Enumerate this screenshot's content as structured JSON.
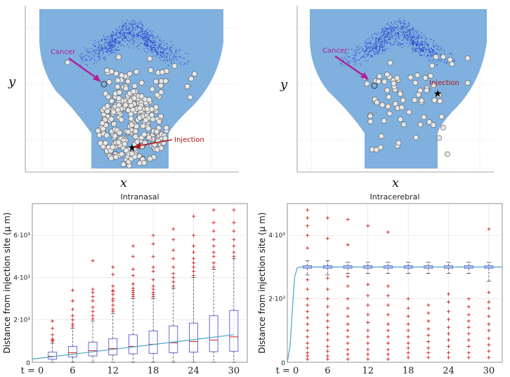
{
  "maps": {
    "x_label": "x",
    "y_label": "y",
    "cancer_label": "Cancer",
    "injection_label": "Injection",
    "cancer_color": "#b2209a",
    "injection_color": "#b01818",
    "brain_color": "#7fb0de",
    "particle_color": "#e6e6e6"
  },
  "chart_data": [
    {
      "type": "box",
      "title": "Intranasal",
      "ylabel": "Distance from injection site (μ m)",
      "xlabel_prefix": "t = 0",
      "x_ticks": [
        6,
        12,
        18,
        24,
        30
      ],
      "xlim": [
        0,
        32
      ],
      "ylim": [
        0,
        7500
      ],
      "y_ticks": [
        {
          "value": 2000,
          "label": "2·10³"
        },
        {
          "value": 4000,
          "label": "4·10³"
        },
        {
          "value": 6000,
          "label": "6·10³"
        }
      ],
      "boxes": [
        {
          "t": 3,
          "whislo": 0,
          "q1": 150,
          "med": 280,
          "q3": 480,
          "whishi": 900,
          "outliers": [
            1000,
            1050,
            1100,
            1300,
            1600,
            1950
          ]
        },
        {
          "t": 6,
          "whislo": 0,
          "q1": 250,
          "med": 450,
          "q3": 750,
          "whishi": 1600,
          "outliers": [
            1700,
            1800,
            2000,
            2200,
            2500,
            2900,
            3400
          ]
        },
        {
          "t": 9,
          "whislo": 0,
          "q1": 300,
          "med": 550,
          "q3": 950,
          "whishi": 1950,
          "outliers": [
            2050,
            2200,
            2400,
            2600,
            2900,
            3100,
            3300,
            3450,
            4800
          ]
        },
        {
          "t": 12,
          "whislo": 0,
          "q1": 350,
          "med": 650,
          "q3": 1120,
          "whishi": 2300,
          "outliers": [
            2400,
            2500,
            2700,
            2900,
            3000,
            3200,
            3350,
            3400,
            3600,
            4150,
            4500
          ]
        },
        {
          "t": 15,
          "whislo": 0,
          "q1": 400,
          "med": 750,
          "q3": 1300,
          "whishi": 3000,
          "outliers": [
            3100,
            3200,
            3300,
            3400,
            3500,
            3700,
            4100,
            4400,
            5000,
            5500
          ]
        },
        {
          "t": 18,
          "whislo": 0,
          "q1": 420,
          "med": 850,
          "q3": 1480,
          "whishi": 3000,
          "outliers": [
            3100,
            3200,
            3300,
            3450,
            3600,
            3900,
            4300,
            4500,
            5000,
            5600,
            6000
          ]
        },
        {
          "t": 21,
          "whislo": 0,
          "q1": 450,
          "med": 920,
          "q3": 1720,
          "whishi": 3500,
          "outliers": [
            3600,
            3800,
            4000,
            4200,
            4500,
            4900,
            5300,
            5800,
            6300
          ]
        },
        {
          "t": 24,
          "whislo": 0,
          "q1": 480,
          "med": 980,
          "q3": 1850,
          "whishi": 4000,
          "outliers": [
            4100,
            4300,
            4500,
            4700,
            4900,
            5200,
            5500,
            6000,
            6900
          ]
        },
        {
          "t": 27,
          "whislo": 0,
          "q1": 500,
          "med": 1050,
          "q3": 2200,
          "whishi": 4400,
          "outliers": [
            4500,
            4700,
            5000,
            5200,
            5500,
            5800,
            6200,
            6600,
            7200
          ]
        },
        {
          "t": 30,
          "whislo": 0,
          "q1": 520,
          "med": 1200,
          "q3": 2450,
          "whishi": 4900,
          "outliers": [
            5000,
            5200,
            5500,
            5800,
            6200,
            6600,
            7200
          ]
        }
      ],
      "trend_line": [
        [
          0,
          150
        ],
        [
          30,
          1300
        ]
      ]
    },
    {
      "type": "box",
      "title": "Intracerebral",
      "ylabel": "Distance from injection site (μ m)",
      "xlabel_prefix": "t = 0",
      "x_ticks": [
        6,
        12,
        18,
        24,
        30
      ],
      "xlim": [
        0,
        32
      ],
      "ylim": [
        0,
        5000
      ],
      "y_ticks": [
        {
          "value": 2000,
          "label": "2·10³"
        },
        {
          "value": 4000,
          "label": "4·10³"
        }
      ],
      "boxes": [
        {
          "t": 3,
          "whislo": 2750,
          "q1": 2960,
          "med": 3000,
          "q3": 3040,
          "whishi": 3200,
          "outliers": [
            100,
            200,
            300,
            450,
            600,
            800,
            1000,
            1200,
            1400,
            1600,
            1800,
            2000,
            2300,
            2600,
            3600,
            4000,
            4300,
            4550,
            4800
          ]
        },
        {
          "t": 6,
          "whislo": 2750,
          "q1": 2960,
          "med": 3000,
          "q3": 3040,
          "whishi": 3200,
          "outliers": [
            100,
            200,
            350,
            500,
            700,
            900,
            1100,
            1300,
            1500,
            1750,
            2000,
            2300,
            2650,
            3900,
            4550
          ]
        },
        {
          "t": 9,
          "whislo": 2800,
          "q1": 2960,
          "med": 3000,
          "q3": 3040,
          "whishi": 3150,
          "outliers": [
            100,
            250,
            400,
            600,
            800,
            1000,
            1200,
            1450,
            1700,
            2000,
            2400,
            2700,
            3700,
            4500
          ]
        },
        {
          "t": 12,
          "whislo": 2800,
          "q1": 2960,
          "med": 3000,
          "q3": 3040,
          "whishi": 3150,
          "outliers": [
            100,
            250,
            400,
            600,
            800,
            1000,
            1250,
            1500,
            1800,
            2100,
            2450,
            4300
          ]
        },
        {
          "t": 15,
          "whislo": 2800,
          "q1": 2960,
          "med": 3000,
          "q3": 3040,
          "whishi": 3150,
          "outliers": [
            100,
            250,
            400,
            600,
            800,
            1000,
            1200,
            1500,
            1800,
            2100,
            2400,
            4100
          ]
        },
        {
          "t": 18,
          "whislo": 2800,
          "q1": 2960,
          "med": 3000,
          "q3": 3040,
          "whishi": 3150,
          "outliers": [
            150,
            300,
            450,
            600,
            800,
            1000,
            1200,
            1450,
            1700,
            2000
          ]
        },
        {
          "t": 21,
          "whislo": 2800,
          "q1": 2960,
          "med": 3000,
          "q3": 3040,
          "whishi": 3150,
          "outliers": [
            150,
            300,
            450,
            650,
            850,
            1050,
            1300,
            1550,
            1800
          ]
        },
        {
          "t": 24,
          "whislo": 2800,
          "q1": 2960,
          "med": 3000,
          "q3": 3040,
          "whishi": 3150,
          "outliers": [
            150,
            300,
            500,
            700,
            900,
            1100,
            1350,
            1600,
            1900,
            2150
          ]
        },
        {
          "t": 27,
          "whislo": 2800,
          "q1": 2960,
          "med": 3000,
          "q3": 3040,
          "whishi": 3150,
          "outliers": [
            150,
            300,
            500,
            700,
            900,
            1100,
            1300,
            1500,
            1750,
            2000
          ]
        },
        {
          "t": 30,
          "whislo": 2550,
          "q1": 2960,
          "med": 3000,
          "q3": 3040,
          "whishi": 3150,
          "outliers": [
            150,
            350,
            550,
            750,
            1000,
            1200,
            1450,
            1700,
            1900,
            2200,
            4200
          ]
        }
      ],
      "trend_line": [
        [
          0,
          0
        ],
        [
          0.4,
          500
        ],
        [
          0.8,
          1800
        ],
        [
          1.1,
          2700
        ],
        [
          1.5,
          2980
        ],
        [
          2,
          3000
        ],
        [
          32,
          3000
        ]
      ]
    }
  ]
}
